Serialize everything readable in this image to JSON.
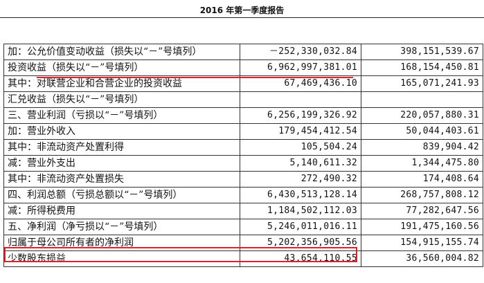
{
  "title": "2016 年第一季度报告",
  "rows": [
    {
      "label": "加：公允价值变动收益（损失以“－”号填列）",
      "current": "－252,330,032.84",
      "prior": "398,151,539.67",
      "indent": 1
    },
    {
      "label": "投资收益（损失以“－”号填列）",
      "current": "6,962,997,381.01",
      "prior": "168,154,450.81",
      "indent": 3
    },
    {
      "label": "其中：对联营企业和合营企业的投资收益",
      "current": "67,469,436.10",
      "prior": "165,071,241.93",
      "indent": 3
    },
    {
      "label": "汇兑收益（损失以“－”号填列）",
      "current": "",
      "prior": "",
      "indent": 3
    },
    {
      "label": "三、营业利润（亏损以“－”号填列）",
      "current": "6,256,199,326.92",
      "prior": "220,057,880.31",
      "indent": 0
    },
    {
      "label": "加：营业外收入",
      "current": "179,454,412.54",
      "prior": "50,044,403.61",
      "indent": 1
    },
    {
      "label": "其中：非流动资产处置利得",
      "current": "105,504.24",
      "prior": "839,904.42",
      "indent": 3
    },
    {
      "label": "减：营业外支出",
      "current": "5,140,611.32",
      "prior": "1,344,475.80",
      "indent": 1
    },
    {
      "label": "其中：非流动资产处置损失",
      "current": "272,490.32",
      "prior": "174,408.64",
      "indent": 3
    },
    {
      "label": "四、利润总额（亏损总额以“－”号填列）",
      "current": "6,430,513,128.14",
      "prior": "268,757,808.12",
      "indent": 0
    },
    {
      "label": "减：所得税费用",
      "current": "1,184,502,112.03",
      "prior": "77,282,647.56",
      "indent": 1
    },
    {
      "label": "五、净利润（净亏损以“－”号填列）",
      "current": "5,246,011,016.11",
      "prior": "191,475,160.56",
      "indent": 0
    },
    {
      "label": "归属于母公司所有者的净利润",
      "current": "5,202,356,905.56",
      "prior": "154,915,155.74",
      "indent": 1
    },
    {
      "label": "少数股东损益",
      "current": "43,654,110.55",
      "prior": "36,560,004.82",
      "indent": 1
    }
  ],
  "highlight_color": "#d8232a"
}
